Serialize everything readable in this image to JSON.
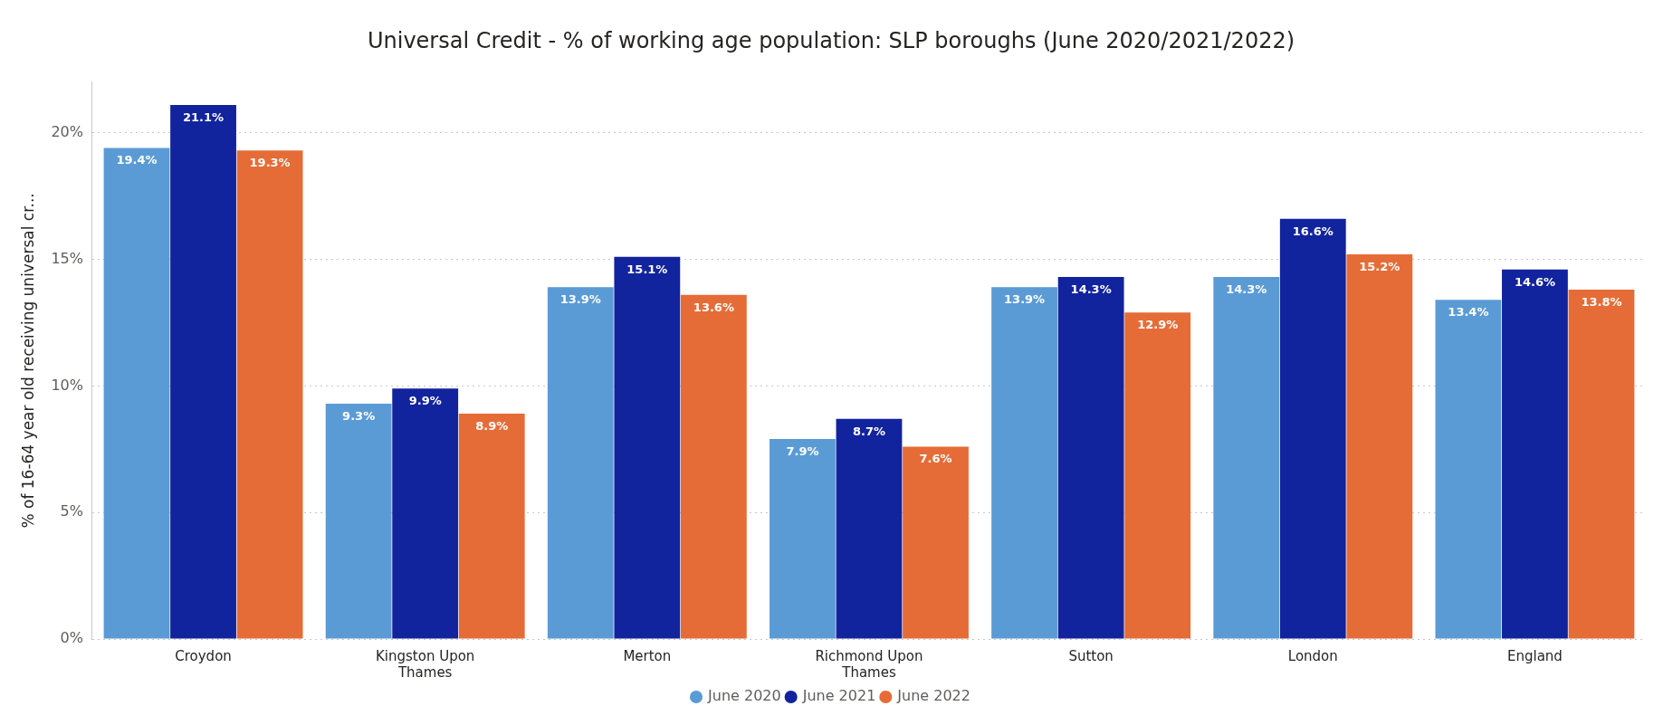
{
  "chart_data": {
    "type": "bar",
    "title": "Universal Credit - % of working age population: SLP boroughs (June 2020/2021/2022)",
    "ylabel": "% of 16-64 year old receiving universal cr...",
    "categories": [
      "Croydon",
      "Kingston Upon Thames",
      "Merton",
      "Richmond Upon Thames",
      "Sutton",
      "London",
      "England"
    ],
    "series": [
      {
        "name": "June 2020",
        "color": "#5b9bd5",
        "values": [
          19.4,
          9.3,
          13.9,
          7.9,
          13.9,
          14.3,
          13.4
        ],
        "value_labels": [
          "19.4%",
          "9.3%",
          "13.9%",
          "7.9%",
          "13.9%",
          "14.3%",
          "13.4%"
        ]
      },
      {
        "name": "June 2021",
        "color": "#12239e",
        "values": [
          21.1,
          9.9,
          15.1,
          8.7,
          14.3,
          16.6,
          14.6
        ],
        "value_labels": [
          "21.1%",
          "9.9%",
          "15.1%",
          "8.7%",
          "14.3%",
          "16.6%",
          "14.6%"
        ]
      },
      {
        "name": "June 2022",
        "color": "#e66c37",
        "values": [
          19.3,
          8.9,
          13.6,
          7.6,
          12.9,
          15.2,
          13.8
        ],
        "value_labels": [
          "19.3%",
          "8.9%",
          "13.6%",
          "7.6%",
          "12.9%",
          "15.2%",
          "13.8%"
        ]
      }
    ],
    "ylim": [
      0,
      22
    ],
    "yticks": [
      {
        "value": 0,
        "label": "0%"
      },
      {
        "value": 5,
        "label": "5%"
      },
      {
        "value": 10,
        "label": "10%"
      },
      {
        "value": 15,
        "label": "15%"
      },
      {
        "value": 20,
        "label": "20%"
      }
    ],
    "grid": "y",
    "legend": "bottom",
    "marker": "circle"
  }
}
